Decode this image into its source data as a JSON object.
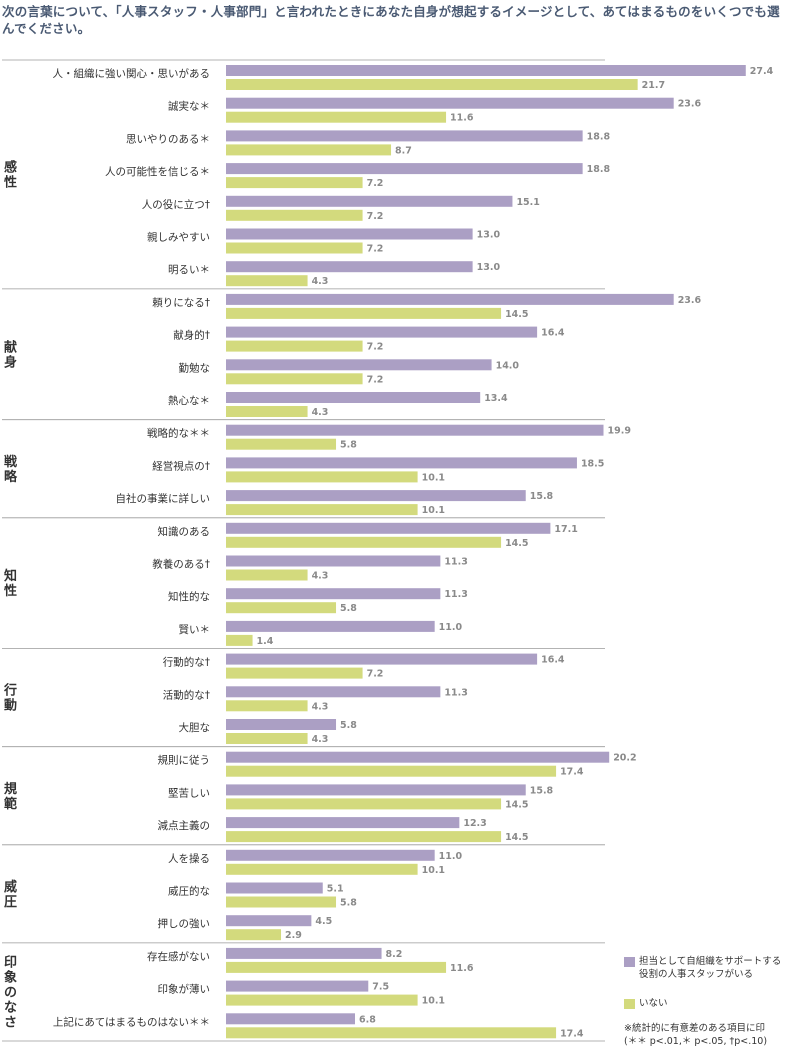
{
  "title": "次の言葉について、「人事スタッフ・人事部門」と言われたときにあなた自身が想起するイメージとして、あてはまるものをいくつでも選んでください。",
  "colors": {
    "series1": "#ab9fc4",
    "series2": "#d3da7d",
    "divider": "#9a9a9a",
    "label": "#333333",
    "value": "#8a8a8a"
  },
  "chart_data": {
    "type": "bar",
    "orientation": "horizontal",
    "title": "次の言葉について、「人事スタッフ・人事部門」と言われたときにあなた自身が想起するイメージとして、あてはまるものをいくつでも選んでください。",
    "xlim": [
      0,
      30
    ],
    "grid": false,
    "legend_position": "bottom-right",
    "series": [
      {
        "name": "担当として自組織をサポートする役割の人事スタッフがいる"
      },
      {
        "name": "いない"
      }
    ],
    "groups": [
      {
        "name": "感性",
        "items": [
          {
            "label": "人・組織に強い関心・思いがある",
            "values": [
              27.4,
              21.7
            ]
          },
          {
            "label": "誠実な＊",
            "values": [
              23.6,
              11.6
            ]
          },
          {
            "label": "思いやりのある＊",
            "values": [
              18.8,
              8.7
            ]
          },
          {
            "label": "人の可能性を信じる＊",
            "values": [
              18.8,
              7.2
            ]
          },
          {
            "label": "人の役に立つ†",
            "values": [
              15.1,
              7.2
            ]
          },
          {
            "label": "親しみやすい",
            "values": [
              13.0,
              7.2
            ]
          },
          {
            "label": "明るい＊",
            "values": [
              13.0,
              4.3
            ]
          }
        ]
      },
      {
        "name": "献身",
        "items": [
          {
            "label": "頼りになる†",
            "values": [
              23.6,
              14.5
            ]
          },
          {
            "label": "献身的†",
            "values": [
              16.4,
              7.2
            ]
          },
          {
            "label": "勤勉な",
            "values": [
              14.0,
              7.2
            ]
          },
          {
            "label": "熱心な＊",
            "values": [
              13.4,
              4.3
            ]
          }
        ]
      },
      {
        "name": "戦略",
        "items": [
          {
            "label": "戦略的な＊＊",
            "values": [
              19.9,
              5.8
            ]
          },
          {
            "label": "経営視点の†",
            "values": [
              18.5,
              10.1
            ]
          },
          {
            "label": "自社の事業に詳しい",
            "values": [
              15.8,
              10.1
            ]
          }
        ]
      },
      {
        "name": "知性",
        "items": [
          {
            "label": "知識のある",
            "values": [
              17.1,
              14.5
            ]
          },
          {
            "label": "教養のある†",
            "values": [
              11.3,
              4.3
            ]
          },
          {
            "label": "知性的な",
            "values": [
              11.3,
              5.8
            ]
          },
          {
            "label": "賢い＊",
            "values": [
              11.0,
              1.4
            ]
          }
        ]
      },
      {
        "name": "行動",
        "items": [
          {
            "label": "行動的な†",
            "values": [
              16.4,
              7.2
            ]
          },
          {
            "label": "活動的な†",
            "values": [
              11.3,
              4.3
            ]
          },
          {
            "label": "大胆な",
            "values": [
              5.8,
              4.3
            ]
          }
        ]
      },
      {
        "name": "規範",
        "items": [
          {
            "label": "規則に従う",
            "values": [
              20.2,
              17.4
            ]
          },
          {
            "label": "堅苦しい",
            "values": [
              15.8,
              14.5
            ]
          },
          {
            "label": "減点主義の",
            "values": [
              12.3,
              14.5
            ]
          }
        ]
      },
      {
        "name": "威圧",
        "items": [
          {
            "label": "人を操る",
            "values": [
              11.0,
              10.1
            ]
          },
          {
            "label": "威圧的な",
            "values": [
              5.1,
              5.8
            ]
          },
          {
            "label": "押しの強い",
            "values": [
              4.5,
              2.9
            ]
          }
        ]
      },
      {
        "name": "印象のなさ",
        "items": [
          {
            "label": "存在感がない",
            "values": [
              8.2,
              11.6
            ]
          },
          {
            "label": "印象が薄い",
            "values": [
              7.5,
              10.1
            ]
          },
          {
            "label": "上記にあてはまるものはない＊＊",
            "values": [
              6.8,
              17.4
            ]
          }
        ]
      }
    ],
    "annotations": [
      "※統計的に有意差のある項目に印",
      "(＊＊ p<.01,＊ p<.05, †p<.10)"
    ]
  },
  "legend": {
    "series1_label": "担当として自組織をサポートする役割の人事スタッフがいる",
    "series2_label": "いない",
    "note_line1": "※統計的に有意差のある項目に印",
    "note_line2": "(＊＊ p<.01,＊ p<.05, †p<.10)"
  }
}
